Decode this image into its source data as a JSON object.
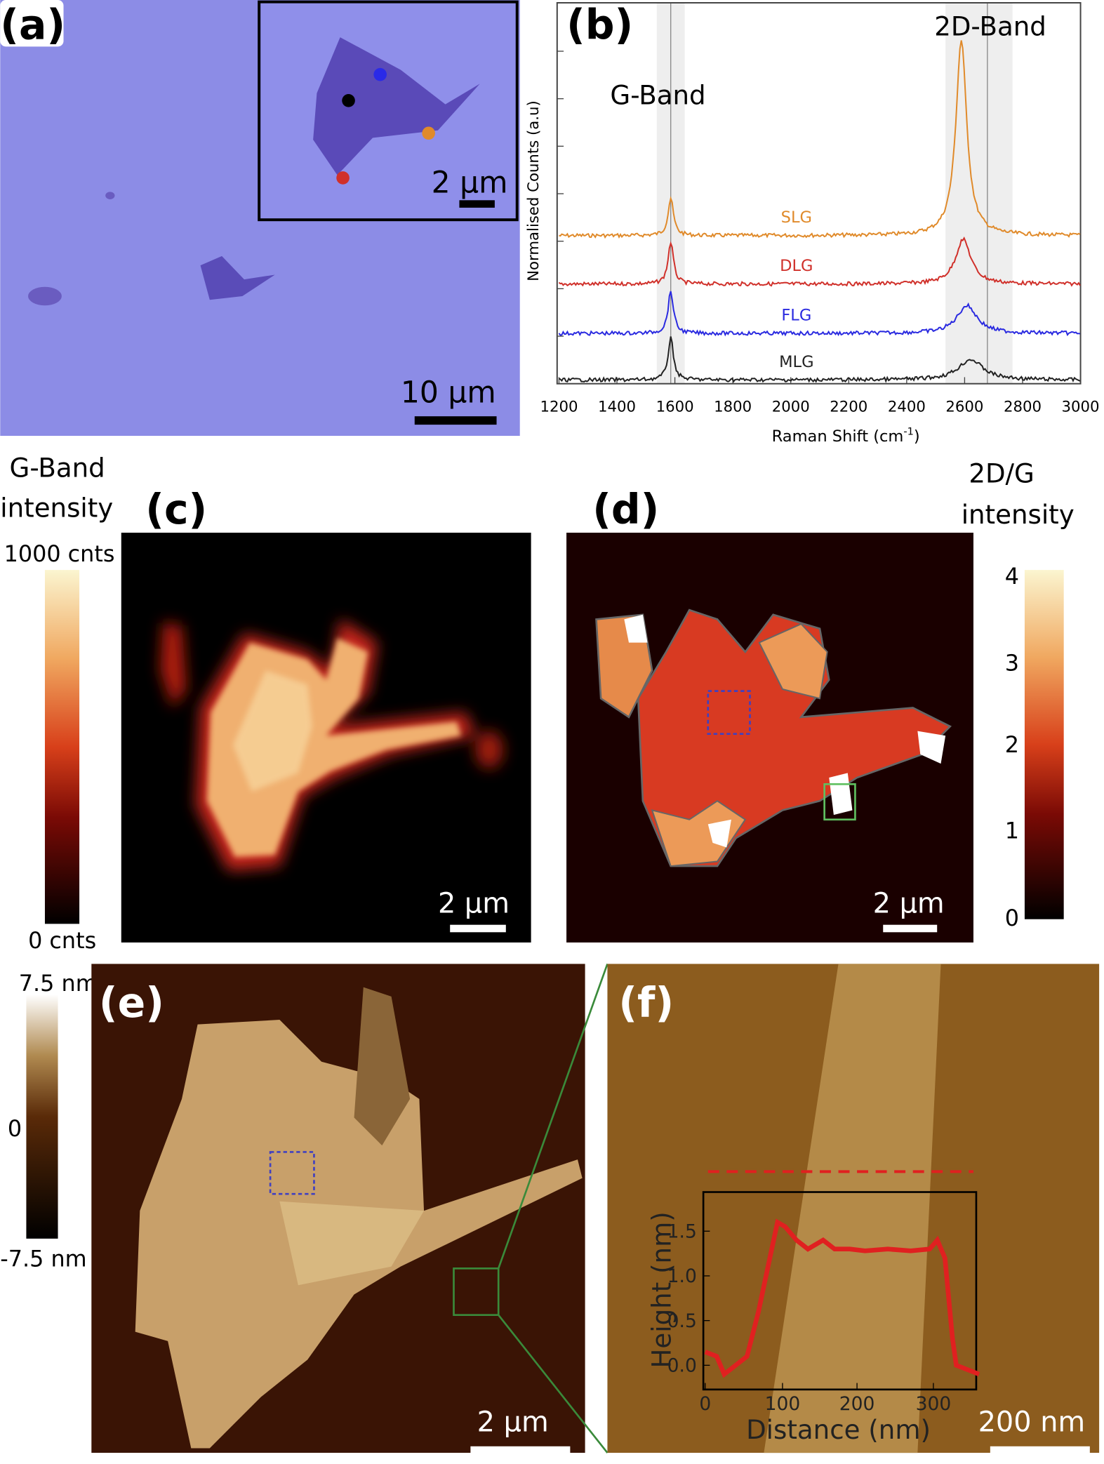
{
  "panels": {
    "a": {
      "label": "(a)",
      "scale_bar": "10 μm",
      "inset_scale_bar": "2 μm"
    },
    "b": {
      "label": "(b)",
      "y_axis_title": "Normalised Counts (a.u)",
      "x_axis_title": "Raman Shift (cm",
      "x_axis_title_sup": "-1",
      "x_axis_title_end": ")",
      "x_ticks": [
        "1200",
        "1400",
        "1600",
        "1800",
        "2000",
        "2200",
        "2400",
        "2600",
        "2800",
        "3000"
      ],
      "peaks": [
        "G-Band",
        "2D-Band"
      ],
      "spectra": [
        "SLG",
        "DLG",
        "FLG",
        "MLG"
      ]
    },
    "c": {
      "label": "(c)",
      "colorbar_title": [
        "G-Band",
        "intensity"
      ],
      "colorbar_max": "1000 cnts",
      "colorbar_min": "0 cnts",
      "scale_bar": "2 μm"
    },
    "d": {
      "label": "(d)",
      "colorbar_title": [
        "2D/G",
        "intensity"
      ],
      "colorbar_ticks": [
        "4",
        "3",
        "2",
        "1",
        "0"
      ],
      "scale_bar": "2 μm"
    },
    "e": {
      "label": "(e)",
      "colorbar_ticks": [
        "7.5 nm",
        "0",
        "-7.5 nm"
      ],
      "scale_bar": "2 μm"
    },
    "f": {
      "label": "(f)",
      "scale_bar": "200 nm",
      "inset_y_title": "Height (nm)",
      "inset_x_title": "Distance (nm)",
      "inset_y_ticks": [
        "1.5",
        "1.0",
        "0.5",
        "0.0"
      ],
      "inset_x_ticks": [
        "0",
        "100",
        "200",
        "300"
      ]
    }
  }
}
